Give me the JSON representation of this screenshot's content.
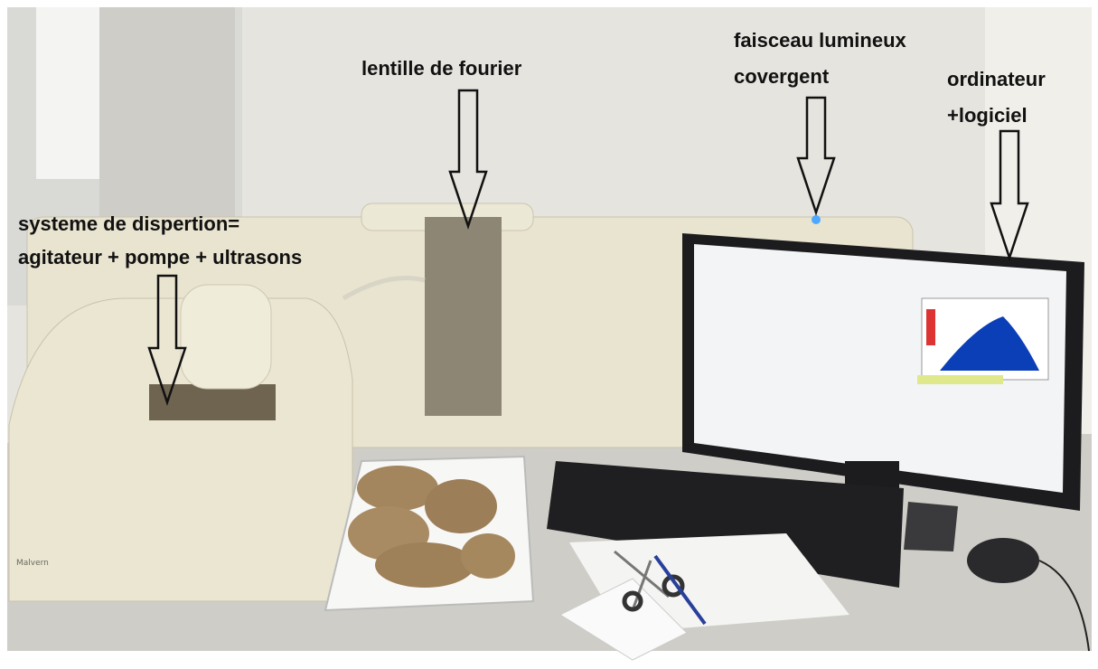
{
  "annotations": [
    {
      "lines": [
        "systeme de dispertion=",
        "agitateur + pompe + ultrasons"
      ]
    },
    {
      "lines": [
        "lentille de fourier"
      ]
    },
    {
      "lines": [
        "faisceau lumineux",
        "covergent"
      ]
    },
    {
      "lines": [
        "ordinateur",
        "+logiciel"
      ]
    }
  ],
  "device_brand": "Malvern"
}
